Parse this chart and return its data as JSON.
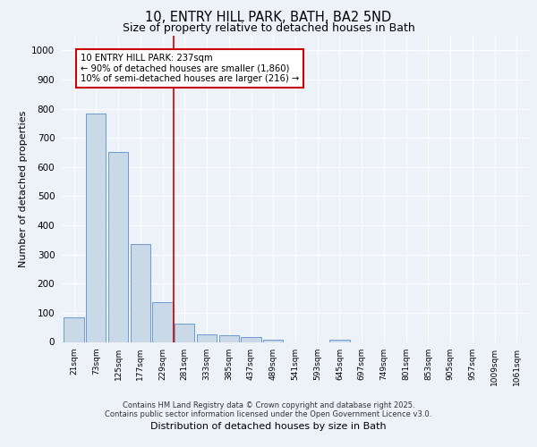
{
  "title_line1": "10, ENTRY HILL PARK, BATH, BA2 5ND",
  "title_line2": "Size of property relative to detached houses in Bath",
  "xlabel": "Distribution of detached houses by size in Bath",
  "ylabel": "Number of detached properties",
  "bar_labels": [
    "21sqm",
    "73sqm",
    "125sqm",
    "177sqm",
    "229sqm",
    "281sqm",
    "333sqm",
    "385sqm",
    "437sqm",
    "489sqm",
    "541sqm",
    "593sqm",
    "645sqm",
    "697sqm",
    "749sqm",
    "801sqm",
    "853sqm",
    "905sqm",
    "957sqm",
    "1009sqm",
    "1061sqm"
  ],
  "bar_values": [
    83,
    783,
    651,
    337,
    135,
    62,
    25,
    22,
    18,
    9,
    0,
    0,
    9,
    0,
    0,
    0,
    0,
    0,
    0,
    0,
    0
  ],
  "bar_color": "#c9d9e8",
  "bar_edge_color": "#5b8fc9",
  "vline_x": 4.5,
  "vline_color": "#cc0000",
  "annotation_text": "10 ENTRY HILL PARK: 237sqm\n← 90% of detached houses are smaller (1,860)\n10% of semi-detached houses are larger (216) →",
  "annotation_box_color": "white",
  "annotation_box_edge": "#cc0000",
  "ylim": [
    0,
    1050
  ],
  "yticks": [
    0,
    100,
    200,
    300,
    400,
    500,
    600,
    700,
    800,
    900,
    1000
  ],
  "bg_color": "#edf2f9",
  "grid_color": "#ffffff",
  "footer_line1": "Contains HM Land Registry data © Crown copyright and database right 2025.",
  "footer_line2": "Contains public sector information licensed under the Open Government Licence v3.0."
}
